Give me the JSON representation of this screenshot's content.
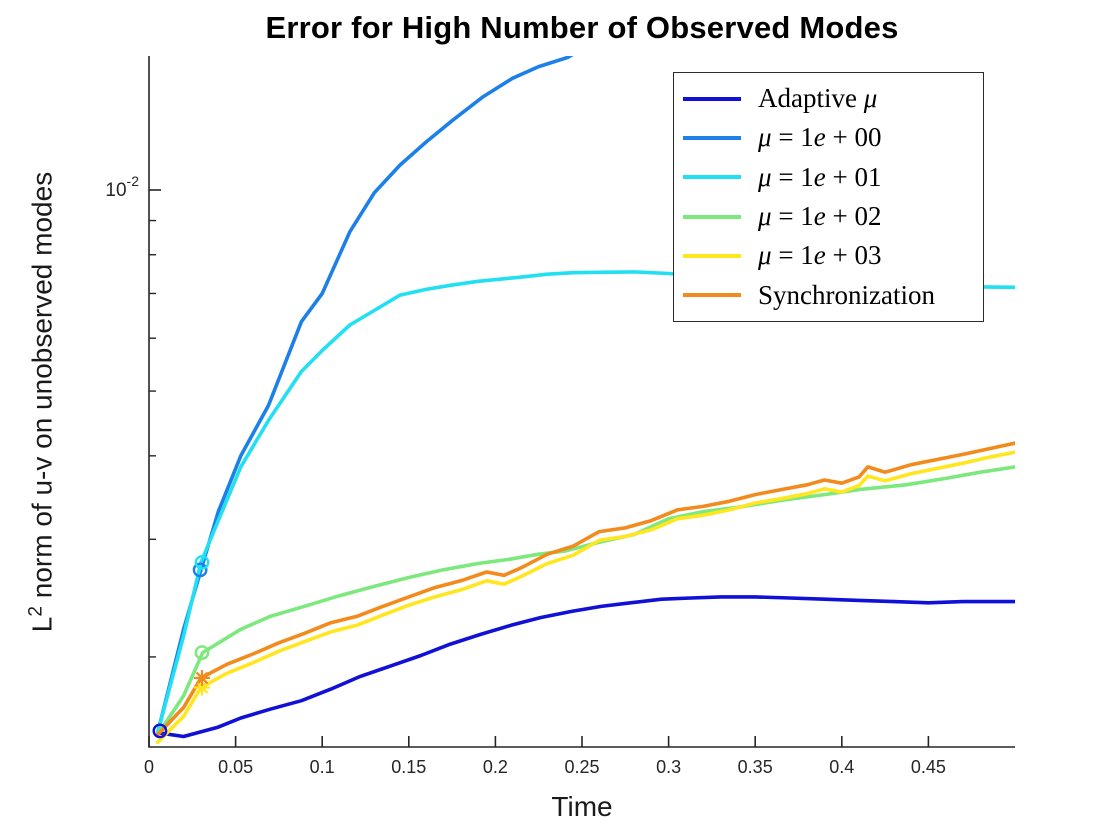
{
  "figure": {
    "title": "Error for High Number of Observed Modes",
    "xlabel": "Time",
    "ylabel_base": "L",
    "ylabel_exponent": "2",
    "ylabel_text": " norm of u-v on unobserved modes"
  },
  "chart_data": {
    "type": "line",
    "title": "Error for High Number of Observed Modes",
    "xlabel": "Time",
    "ylabel": "L^2 norm of u-v on unobserved modes",
    "xlim": [
      0,
      0.5
    ],
    "ylim": [
      0.00147,
      0.0159
    ],
    "yscale": "log",
    "grid": false,
    "legend_position": "upper-right",
    "x_ticks": [
      0,
      0.05,
      0.1,
      0.15,
      0.2,
      0.25,
      0.3,
      0.35,
      0.4,
      0.45
    ],
    "x_tick_labels": [
      "0",
      "0.05",
      "0.1",
      "0.15",
      "0.2",
      "0.25",
      "0.3",
      "0.35",
      "0.4",
      "0.45"
    ],
    "y_axis": {
      "major_tick": {
        "base": "10",
        "exp": "-2",
        "value": 0.01
      },
      "minor_tick_values": [
        0.002,
        0.003,
        0.004,
        0.005,
        0.006,
        0.007,
        0.008,
        0.009
      ]
    },
    "series": [
      {
        "key": "adaptive-mu",
        "label": "Adaptive μ",
        "color": "#1010D6",
        "line_width": 3.6,
        "marker": {
          "shape": "circle",
          "x": 0.0063,
          "v": 0.00155
        },
        "x": [
          0.005,
          0.02,
          0.04,
          0.053,
          0.07,
          0.088,
          0.105,
          0.122,
          0.14,
          0.157,
          0.174,
          0.191,
          0.209,
          0.226,
          0.244,
          0.261,
          0.278,
          0.296,
          0.313,
          0.33,
          0.35,
          0.37,
          0.39,
          0.41,
          0.43,
          0.45,
          0.47,
          0.49,
          0.5
        ],
        "y": [
          0.00154,
          0.00152,
          0.00157,
          0.00162,
          0.00167,
          0.00172,
          0.00179,
          0.00187,
          0.00194,
          0.00201,
          0.00209,
          0.00216,
          0.00223,
          0.00229,
          0.00234,
          0.00238,
          0.00241,
          0.00244,
          0.00245,
          0.00246,
          0.00246,
          0.00245,
          0.00244,
          0.00243,
          0.00242,
          0.00241,
          0.00242,
          0.00242,
          0.00242
        ]
      },
      {
        "key": "mu-1e00",
        "label": "μ = 1e + 00",
        "color": "#1C80E8",
        "line_width": 3.6,
        "marker": {
          "shape": "circle",
          "x": 0.0295,
          "v": 0.0027
        },
        "x": [
          0.005,
          0.02,
          0.03,
          0.04,
          0.053,
          0.069,
          0.088,
          0.1,
          0.116,
          0.13,
          0.145,
          0.16,
          0.175,
          0.193,
          0.21,
          0.225,
          0.242,
          0.25
        ],
        "y": [
          0.00154,
          0.0022,
          0.0027,
          0.0033,
          0.004,
          0.00476,
          0.00635,
          0.007,
          0.00866,
          0.0099,
          0.0109,
          0.0118,
          0.0127,
          0.0138,
          0.0147,
          0.0153,
          0.0158,
          0.0163
        ]
      },
      {
        "key": "mu-1e01",
        "label": "μ = 1e + 01",
        "color": "#22DFF2",
        "line_width": 3.6,
        "marker": {
          "shape": "circle",
          "x": 0.0306,
          "v": 0.00277
        },
        "x": [
          0.005,
          0.02,
          0.03,
          0.04,
          0.053,
          0.069,
          0.088,
          0.1,
          0.116,
          0.13,
          0.145,
          0.16,
          0.174,
          0.19,
          0.213,
          0.23,
          0.245,
          0.26,
          0.28,
          0.3,
          0.32,
          0.34,
          0.36,
          0.38,
          0.4,
          0.42,
          0.44,
          0.46,
          0.48,
          0.5
        ],
        "y": [
          0.00154,
          0.00215,
          0.00277,
          0.0032,
          0.00385,
          0.00452,
          0.00535,
          0.00575,
          0.00628,
          0.0066,
          0.00696,
          0.0071,
          0.0072,
          0.0073,
          0.0074,
          0.00748,
          0.00752,
          0.00753,
          0.00754,
          0.0075,
          0.00742,
          0.00736,
          0.0073,
          0.00728,
          0.00725,
          0.00722,
          0.0072,
          0.00718,
          0.00716,
          0.00715
        ]
      },
      {
        "key": "mu-1e02",
        "label": "μ = 1e + 02",
        "color": "#7DE87D",
        "line_width": 3.6,
        "marker": {
          "shape": "circle",
          "x": 0.0306,
          "v": 0.00203
        },
        "x": [
          0.005,
          0.02,
          0.031,
          0.053,
          0.07,
          0.092,
          0.11,
          0.13,
          0.15,
          0.17,
          0.19,
          0.208,
          0.225,
          0.24,
          0.26,
          0.28,
          0.3,
          0.32,
          0.34,
          0.368,
          0.39,
          0.41,
          0.437,
          0.46,
          0.48,
          0.5
        ],
        "y": [
          0.00153,
          0.00175,
          0.00203,
          0.0022,
          0.0023,
          0.00239,
          0.00247,
          0.00255,
          0.00263,
          0.0027,
          0.00276,
          0.0028,
          0.00285,
          0.00288,
          0.00297,
          0.00305,
          0.00322,
          0.0033,
          0.00335,
          0.00344,
          0.0035,
          0.00356,
          0.00362,
          0.0037,
          0.00378,
          0.00385
        ]
      },
      {
        "key": "mu-1e03",
        "label": "μ = 1e + 03",
        "color": "#FFE61E",
        "line_width": 3.6,
        "marker": {
          "shape": "asterisk",
          "x": 0.0306,
          "v": 0.0018
        },
        "x": [
          0.005,
          0.02,
          0.03,
          0.045,
          0.06,
          0.075,
          0.09,
          0.105,
          0.12,
          0.135,
          0.15,
          0.165,
          0.18,
          0.195,
          0.205,
          0.215,
          0.23,
          0.245,
          0.26,
          0.275,
          0.29,
          0.305,
          0.32,
          0.335,
          0.35,
          0.365,
          0.38,
          0.39,
          0.4,
          0.41,
          0.415,
          0.425,
          0.44,
          0.455,
          0.47,
          0.485,
          0.5
        ],
        "y": [
          0.00149,
          0.00163,
          0.0018,
          0.00189,
          0.00196,
          0.00204,
          0.00211,
          0.00218,
          0.00223,
          0.00231,
          0.00239,
          0.00246,
          0.00252,
          0.0026,
          0.00257,
          0.00264,
          0.00276,
          0.00284,
          0.00299,
          0.00303,
          0.0031,
          0.00322,
          0.00326,
          0.00332,
          0.0034,
          0.00345,
          0.00351,
          0.00357,
          0.00353,
          0.00361,
          0.00373,
          0.00367,
          0.00376,
          0.00383,
          0.0039,
          0.00398,
          0.00405
        ]
      },
      {
        "key": "synchronization",
        "label": "Synchronization",
        "color": "#F28A1C",
        "line_width": 3.6,
        "marker": {
          "shape": "asterisk",
          "x": 0.0306,
          "v": 0.00186
        },
        "x": [
          0.005,
          0.02,
          0.03,
          0.045,
          0.06,
          0.075,
          0.09,
          0.105,
          0.12,
          0.135,
          0.15,
          0.165,
          0.18,
          0.195,
          0.205,
          0.215,
          0.23,
          0.245,
          0.26,
          0.275,
          0.29,
          0.305,
          0.32,
          0.335,
          0.35,
          0.365,
          0.38,
          0.39,
          0.4,
          0.41,
          0.415,
          0.425,
          0.44,
          0.455,
          0.47,
          0.485,
          0.5
        ],
        "y": [
          0.00153,
          0.00168,
          0.00186,
          0.00195,
          0.00202,
          0.0021,
          0.00217,
          0.00225,
          0.0023,
          0.00238,
          0.00246,
          0.00254,
          0.0026,
          0.00268,
          0.00265,
          0.00272,
          0.00285,
          0.00293,
          0.00308,
          0.00312,
          0.0032,
          0.00332,
          0.00336,
          0.00342,
          0.0035,
          0.00356,
          0.00362,
          0.00368,
          0.00364,
          0.00372,
          0.00385,
          0.00378,
          0.00388,
          0.00395,
          0.00402,
          0.0041,
          0.00418
        ]
      }
    ]
  }
}
